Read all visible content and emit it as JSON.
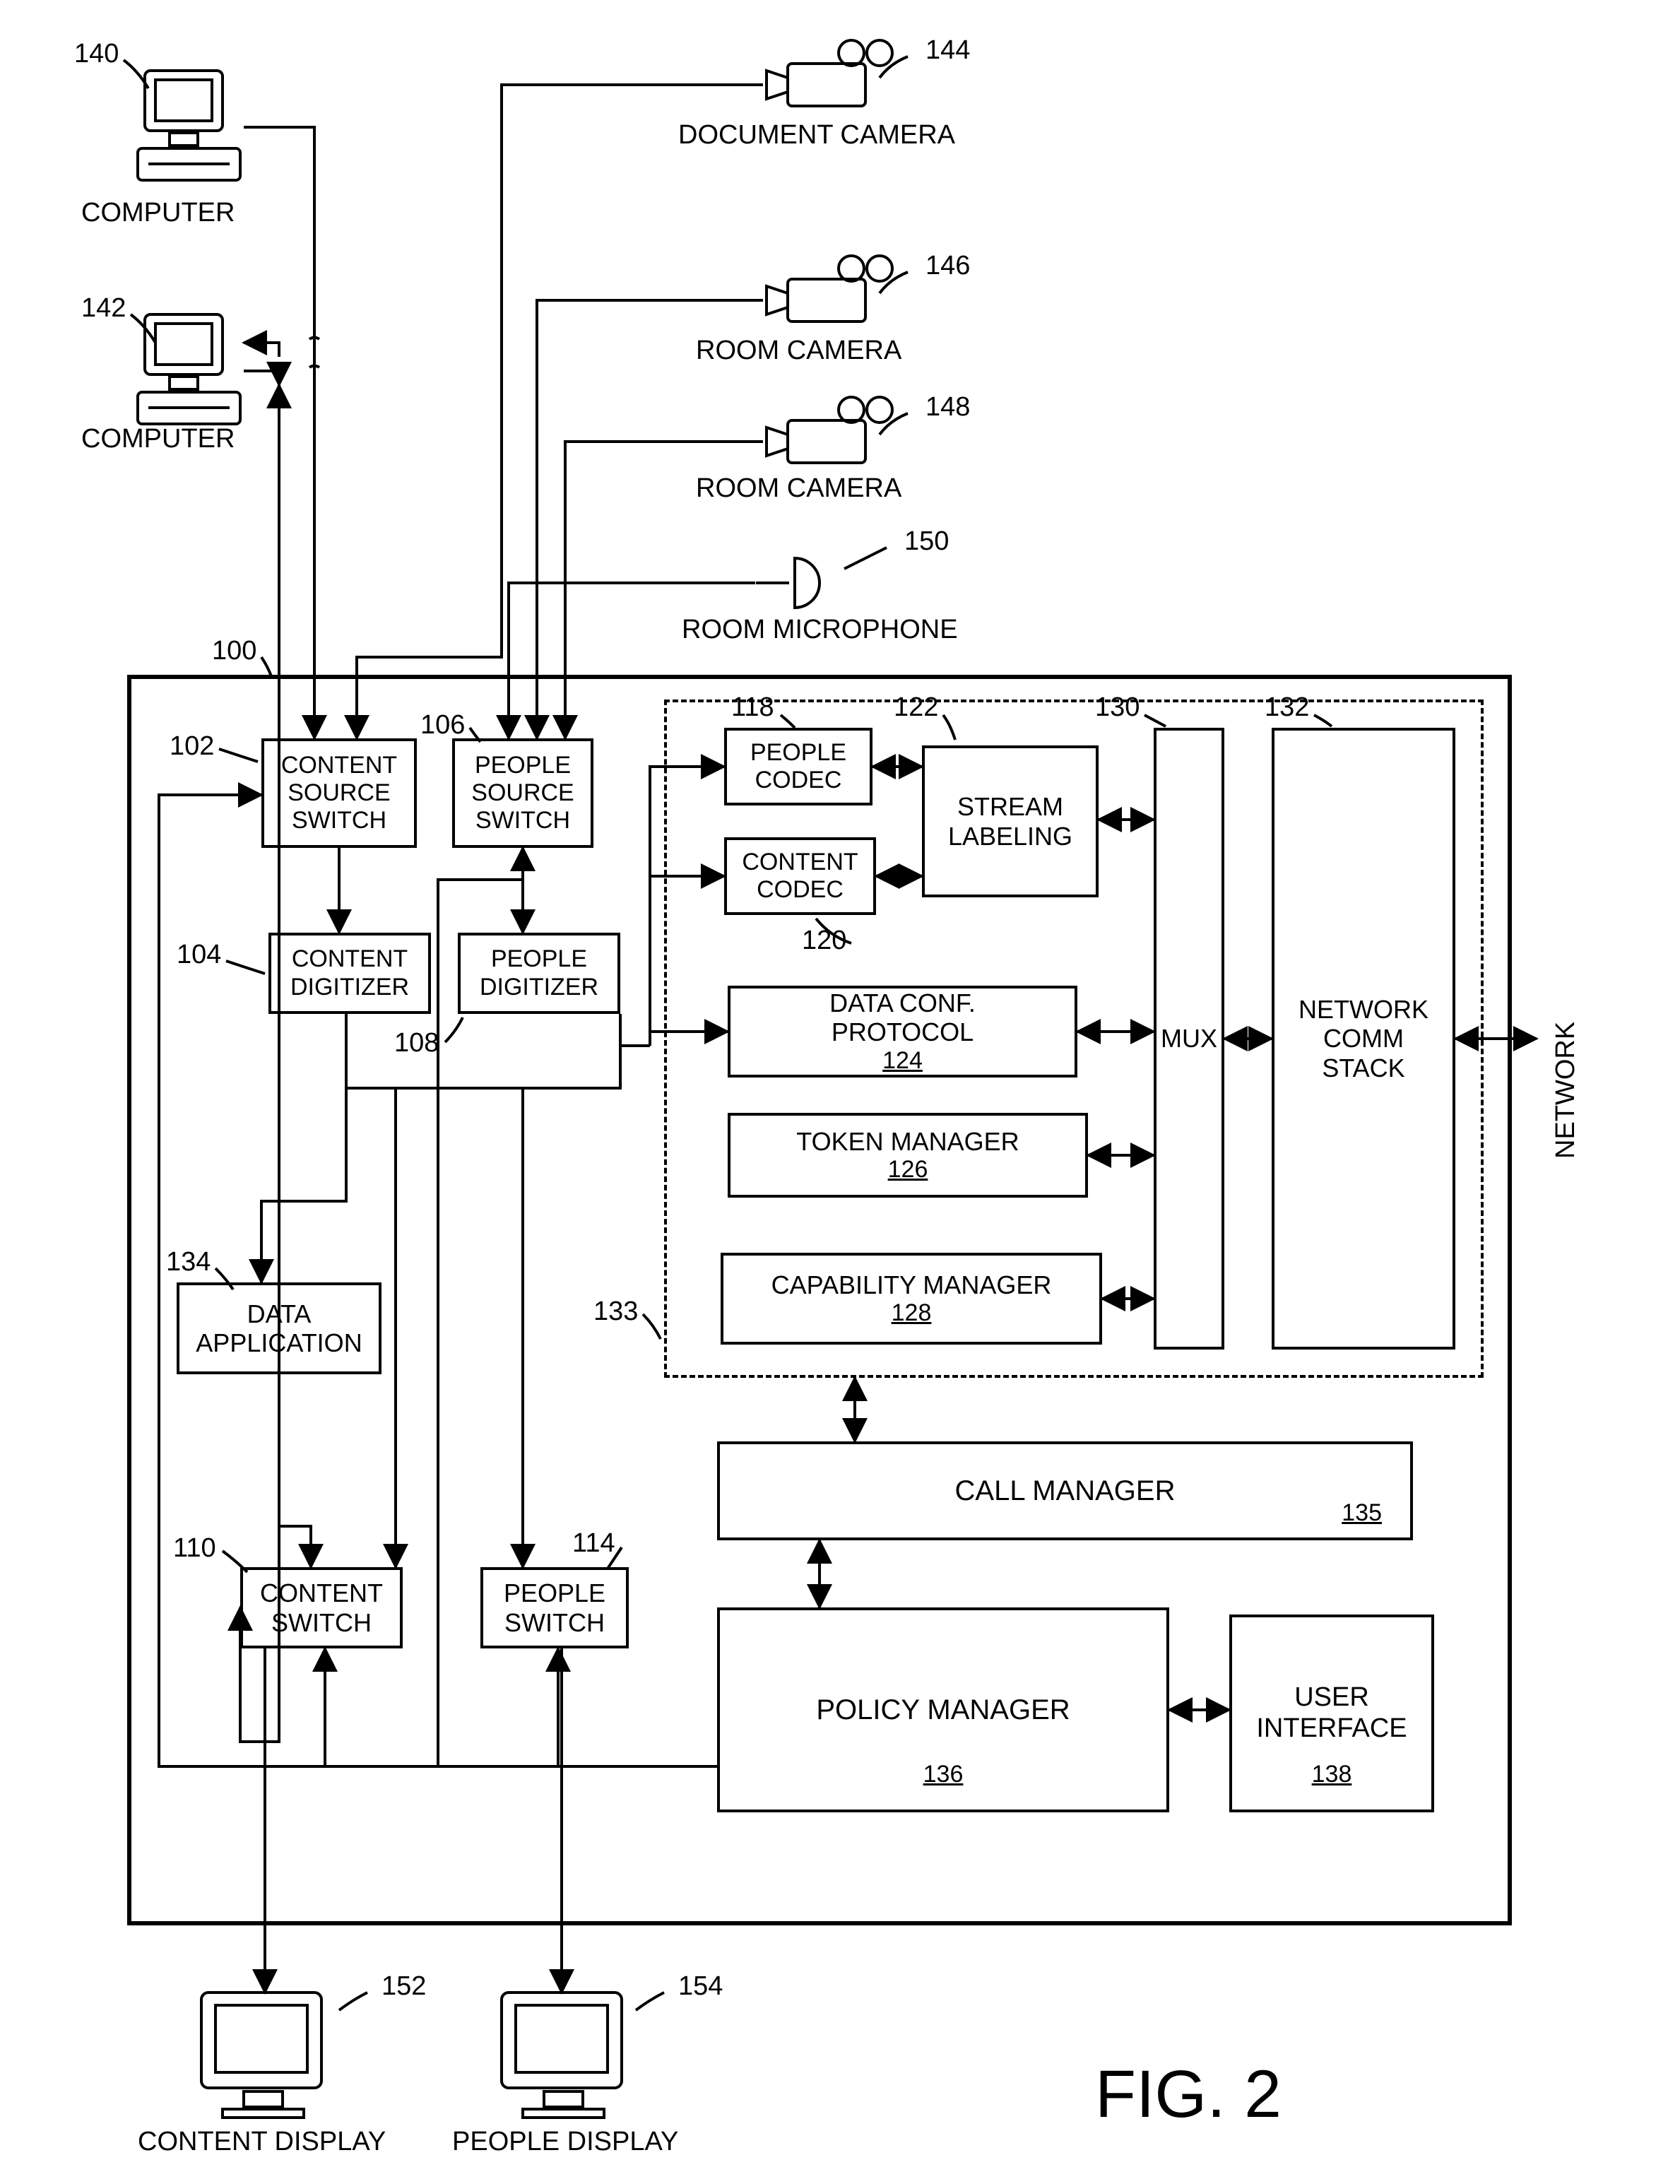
{
  "figure_label": "FIG. 2",
  "font": {
    "label_size": 38,
    "box_size": 34,
    "fig_size": 90,
    "weight": 600
  },
  "colors": {
    "stroke": "#000000",
    "bg": "#ffffff"
  },
  "stroke_width": 4,
  "refs": {
    "r100": "100",
    "r102": "102",
    "r104": "104",
    "r106": "106",
    "r108": "108",
    "r110": "110",
    "r114": "114",
    "r118": "118",
    "r120": "120",
    "r122": "122",
    "r124": "124",
    "r126": "126",
    "r128": "128",
    "r130": "130",
    "r132": "132",
    "r133": "133",
    "r134": "134",
    "r135": "135",
    "r136": "136",
    "r138": "138",
    "r140": "140",
    "r142": "142",
    "r144": "144",
    "r146": "146",
    "r148": "148",
    "r150": "150",
    "r152": "152",
    "r154": "154"
  },
  "labels": {
    "computer": "COMPUTER",
    "doc_camera": "DOCUMENT CAMERA",
    "room_camera": "ROOM CAMERA",
    "room_mic": "ROOM MICROPHONE",
    "content_display": "CONTENT DISPLAY",
    "people_display": "PEOPLE DISPLAY",
    "network": "NETWORK"
  },
  "boxes": {
    "content_source_switch": "CONTENT\nSOURCE\nSWITCH",
    "people_source_switch": "PEOPLE\nSOURCE\nSWITCH",
    "content_digitizer": "CONTENT\nDIGITIZER",
    "people_digitizer": "PEOPLE\nDIGITIZER",
    "people_codec": "PEOPLE\nCODEC",
    "content_codec": "CONTENT\nCODEC",
    "stream_labeling": "STREAM\nLABELING",
    "data_conf_protocol": "DATA CONF.\nPROTOCOL",
    "token_manager": "TOKEN MANAGER",
    "capability_manager": "CAPABILITY MANAGER",
    "mux": "MUX",
    "network_comm_stack": "NETWORK\nCOMM\nSTACK",
    "data_application": "DATA\nAPPLICATION",
    "content_switch": "CONTENT\nSWITCH",
    "people_switch": "PEOPLE\nSWITCH",
    "call_manager": "CALL MANAGER",
    "policy_manager": "POLICY MANAGER",
    "user_interface": "USER\nINTERFACE"
  }
}
